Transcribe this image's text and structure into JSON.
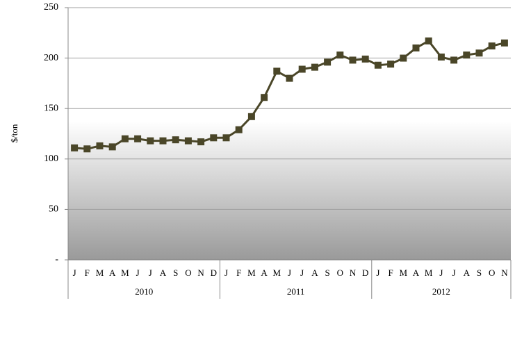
{
  "chart_data": {
    "type": "line",
    "y_label": "$/ton",
    "category_groups": [
      {
        "label": "2010",
        "categories": [
          "J",
          "F",
          "M",
          "A",
          "M",
          "J",
          "J",
          "A",
          "S",
          "O",
          "N",
          "D"
        ]
      },
      {
        "label": "2011",
        "categories": [
          "J",
          "F",
          "M",
          "A",
          "M",
          "J",
          "J",
          "A",
          "S",
          "O",
          "N",
          "D"
        ]
      },
      {
        "label": "2012",
        "categories": [
          "J",
          "F",
          "M",
          "A",
          "M",
          "J",
          "J",
          "A",
          "S",
          "O",
          "N"
        ]
      }
    ],
    "values": [
      111,
      110,
      113,
      112,
      120,
      120,
      118,
      118,
      119,
      118,
      117,
      121,
      121,
      129,
      142,
      161,
      187,
      180,
      189,
      191,
      196,
      203,
      198,
      199,
      193,
      194,
      200,
      210,
      217,
      201,
      198,
      203,
      205,
      212,
      215
    ],
    "color": "#4a4628",
    "ylim": [
      0,
      250
    ],
    "yticks": [
      {
        "value": 0,
        "label": "-"
      },
      50,
      100,
      150,
      200,
      250
    ],
    "grid": true
  }
}
